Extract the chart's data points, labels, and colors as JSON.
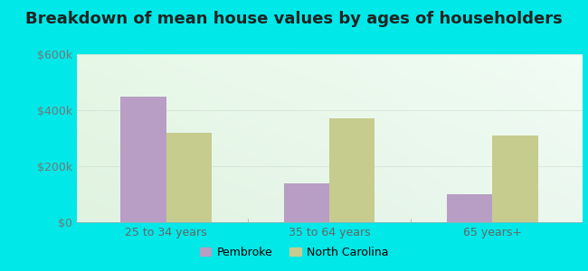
{
  "title": "Breakdown of mean house values by ages of householders",
  "categories": [
    "25 to 34 years",
    "35 to 64 years",
    "65 years+"
  ],
  "pembroke_values": [
    450000,
    140000,
    100000
  ],
  "nc_values": [
    320000,
    370000,
    310000
  ],
  "pembroke_color": "#b89ec4",
  "nc_color": "#c5cc8e",
  "ylim": [
    0,
    600000
  ],
  "yticks": [
    0,
    200000,
    400000,
    600000
  ],
  "ytick_labels": [
    "$0",
    "$200k",
    "$400k",
    "$600k"
  ],
  "bg_outer": "#00e8e8",
  "legend_pembroke": "Pembroke",
  "legend_nc": "North Carolina",
  "bar_width": 0.28,
  "title_fontsize": 13,
  "tick_fontsize": 9,
  "legend_fontsize": 9
}
